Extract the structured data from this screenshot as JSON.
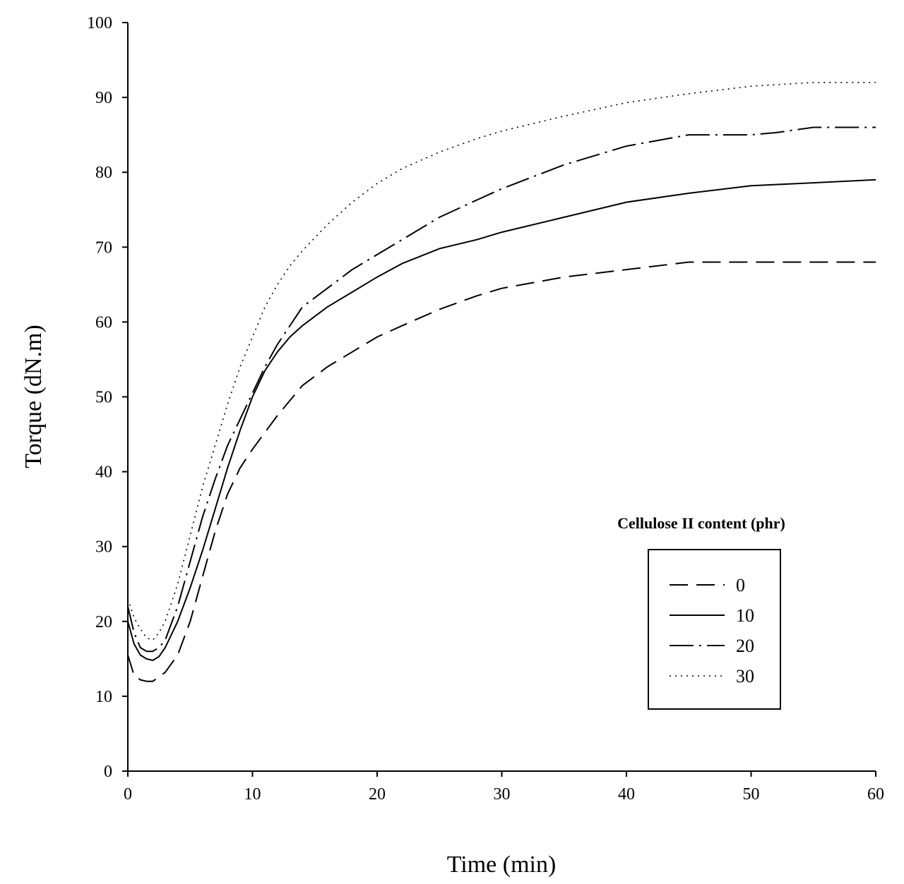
{
  "chart_data": {
    "type": "line",
    "title": "",
    "xlabel": "Time (min)",
    "ylabel": "Torque (dN.m)",
    "xlim": [
      0,
      60
    ],
    "ylim": [
      0,
      100
    ],
    "xticks": [
      0,
      10,
      20,
      30,
      40,
      50,
      60
    ],
    "yticks": [
      0,
      10,
      20,
      30,
      40,
      50,
      60,
      70,
      80,
      90,
      100
    ],
    "grid": false,
    "legend": {
      "title": "Cellulose II content (phr)",
      "placement": "right-center"
    },
    "series": [
      {
        "name": "0",
        "style": "dashed",
        "x": [
          0,
          0.5,
          1,
          1.5,
          2,
          2.5,
          3,
          4,
          5,
          6,
          7,
          8,
          9,
          10,
          12,
          14,
          16,
          18,
          20,
          22,
          25,
          28,
          30,
          35,
          40,
          45,
          50,
          55,
          60
        ],
        "y": [
          15.5,
          12.8,
          12.2,
          12.0,
          12.0,
          12.6,
          13.2,
          15.5,
          20,
          26,
          32,
          37,
          40.5,
          43,
          47.5,
          51.5,
          54,
          56,
          58,
          59.5,
          61.7,
          63.5,
          64.5,
          66,
          67,
          68,
          68,
          68,
          68
        ]
      },
      {
        "name": "10",
        "style": "solid",
        "x": [
          0,
          0.5,
          1,
          1.5,
          2,
          2.5,
          3,
          4,
          5,
          6,
          7,
          8,
          9,
          10,
          11,
          12,
          13,
          14,
          16,
          18,
          20,
          22,
          25,
          28,
          30,
          32,
          35,
          40,
          45,
          50,
          55,
          60
        ],
        "y": [
          20,
          17,
          15.5,
          15.0,
          14.8,
          15.3,
          16.5,
          20,
          24.5,
          29.5,
          35,
          40.5,
          45.5,
          50,
          53.5,
          56,
          58,
          59.5,
          62,
          64,
          66,
          67.8,
          69.8,
          71,
          72,
          72.8,
          74,
          76,
          77.2,
          78.2,
          78.6,
          79
        ]
      },
      {
        "name": "20",
        "style": "dash-dot",
        "x": [
          0,
          0.5,
          1,
          1.5,
          2,
          2.5,
          3,
          4,
          5,
          6,
          7,
          8,
          9,
          10,
          11,
          12,
          13,
          14,
          16,
          18,
          20,
          22,
          25,
          28,
          30,
          35,
          40,
          45,
          47,
          50,
          52,
          55,
          58,
          60
        ],
        "y": [
          22,
          18.5,
          16.5,
          16.0,
          16.0,
          16.5,
          17.5,
          22,
          28,
          34,
          39,
          43.5,
          47,
          50.5,
          54,
          57,
          59.5,
          62,
          64.5,
          67,
          69,
          71,
          74,
          76.3,
          77.8,
          81,
          83.5,
          85,
          85,
          85,
          85.3,
          86,
          86,
          86
        ]
      },
      {
        "name": "30",
        "style": "dotted",
        "x": [
          0,
          0.5,
          1,
          1.5,
          2,
          2.5,
          3,
          4,
          5,
          6,
          7,
          8,
          9,
          10,
          11,
          12,
          13,
          14,
          16,
          18,
          20,
          22,
          25,
          28,
          30,
          35,
          40,
          45,
          50,
          55,
          57,
          60
        ],
        "y": [
          23,
          20.5,
          19,
          17.8,
          17.5,
          18.5,
          20,
          25,
          31.5,
          38,
          43.5,
          49,
          54,
          58,
          62,
          65,
          67.5,
          69.5,
          73,
          76,
          78.5,
          80.5,
          82.7,
          84.5,
          85.5,
          87.5,
          89.3,
          90.5,
          91.5,
          92,
          92,
          92
        ]
      }
    ]
  }
}
